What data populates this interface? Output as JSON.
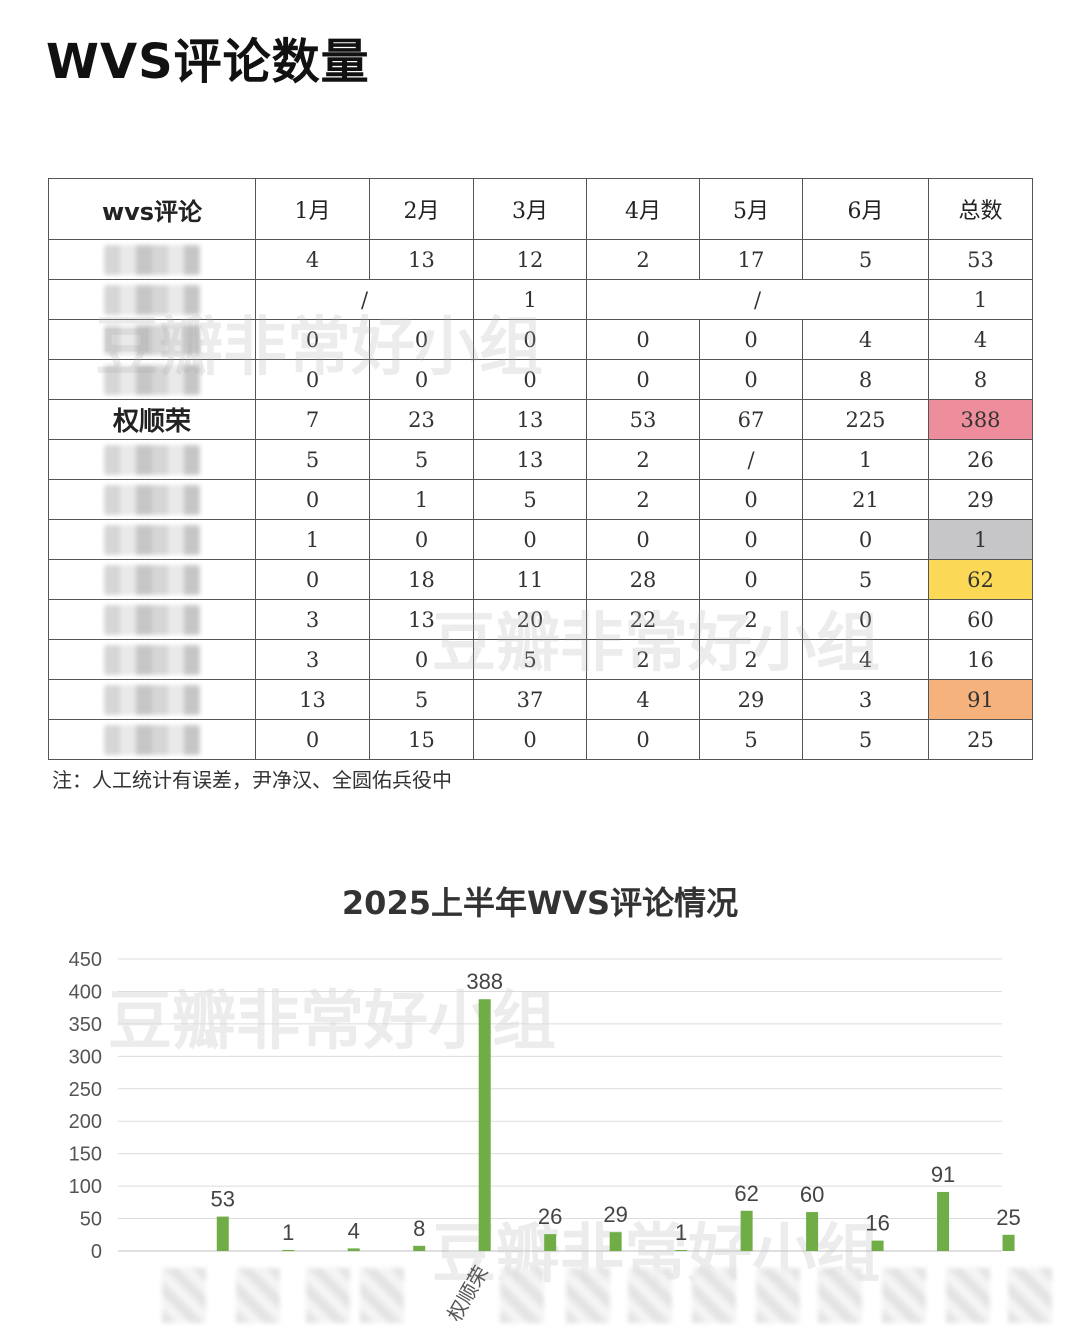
{
  "page": {
    "title": "WVS评论数量"
  },
  "table": {
    "headers": [
      "wvs评论",
      "1月",
      "2月",
      "3月",
      "4月",
      "5月",
      "6月",
      "总数"
    ],
    "rows": [
      {
        "name": "",
        "cells": [
          {
            "v": "4"
          },
          {
            "v": "13"
          },
          {
            "v": "12"
          },
          {
            "v": "2"
          },
          {
            "v": "17"
          },
          {
            "v": "5"
          }
        ],
        "total": "53",
        "highlight": ""
      },
      {
        "name": "",
        "cells": [
          {
            "v": "/",
            "span": 2
          },
          {
            "v": "1"
          },
          {
            "v": "/",
            "span": 3
          }
        ],
        "total": "1",
        "highlight": ""
      },
      {
        "name": "",
        "cells": [
          {
            "v": "0"
          },
          {
            "v": "0"
          },
          {
            "v": "0"
          },
          {
            "v": "0"
          },
          {
            "v": "0"
          },
          {
            "v": "4"
          }
        ],
        "total": "4",
        "highlight": ""
      },
      {
        "name": "",
        "cells": [
          {
            "v": "0"
          },
          {
            "v": "0"
          },
          {
            "v": "0"
          },
          {
            "v": "0"
          },
          {
            "v": "0"
          },
          {
            "v": "8"
          }
        ],
        "total": "8",
        "highlight": ""
      },
      {
        "name": "权顺荣",
        "cells": [
          {
            "v": "7"
          },
          {
            "v": "23"
          },
          {
            "v": "13"
          },
          {
            "v": "53"
          },
          {
            "v": "67"
          },
          {
            "v": "225"
          }
        ],
        "total": "388",
        "highlight": "#ee8d9c"
      },
      {
        "name": "",
        "cells": [
          {
            "v": "5"
          },
          {
            "v": "5"
          },
          {
            "v": "13"
          },
          {
            "v": "2"
          },
          {
            "v": "/"
          },
          {
            "v": "1"
          }
        ],
        "total": "26",
        "highlight": ""
      },
      {
        "name": "",
        "cells": [
          {
            "v": "0"
          },
          {
            "v": "1"
          },
          {
            "v": "5"
          },
          {
            "v": "2"
          },
          {
            "v": "0"
          },
          {
            "v": "21"
          }
        ],
        "total": "29",
        "highlight": ""
      },
      {
        "name": "",
        "cells": [
          {
            "v": "1"
          },
          {
            "v": "0"
          },
          {
            "v": "0"
          },
          {
            "v": "0"
          },
          {
            "v": "0"
          },
          {
            "v": "0"
          }
        ],
        "total": "1",
        "highlight": "#c6c6c8"
      },
      {
        "name": "",
        "cells": [
          {
            "v": "0"
          },
          {
            "v": "18"
          },
          {
            "v": "11"
          },
          {
            "v": "28"
          },
          {
            "v": "0"
          },
          {
            "v": "5"
          }
        ],
        "total": "62",
        "highlight": "#fbd855"
      },
      {
        "name": "",
        "cells": [
          {
            "v": "3"
          },
          {
            "v": "13"
          },
          {
            "v": "20"
          },
          {
            "v": "22"
          },
          {
            "v": "2"
          },
          {
            "v": "0"
          }
        ],
        "total": "60",
        "highlight": ""
      },
      {
        "name": "",
        "cells": [
          {
            "v": "3"
          },
          {
            "v": "0"
          },
          {
            "v": "5"
          },
          {
            "v": "2"
          },
          {
            "v": "2"
          },
          {
            "v": "4"
          }
        ],
        "total": "16",
        "highlight": ""
      },
      {
        "name": "",
        "cells": [
          {
            "v": "13"
          },
          {
            "v": "5"
          },
          {
            "v": "37"
          },
          {
            "v": "4"
          },
          {
            "v": "29"
          },
          {
            "v": "3"
          }
        ],
        "total": "91",
        "highlight": "#f5b27c"
      },
      {
        "name": "",
        "cells": [
          {
            "v": "0"
          },
          {
            "v": "15"
          },
          {
            "v": "0"
          },
          {
            "v": "0"
          },
          {
            "v": "5"
          },
          {
            "v": "5"
          }
        ],
        "total": "25",
        "highlight": ""
      }
    ],
    "note": "注：人工统计有误差，尹净汉、全圆佑兵役中"
  },
  "watermark": "豆瓣非常好小组",
  "chart_data": {
    "type": "bar",
    "title": "2025上半年WVS评论情况",
    "categories": [
      "",
      "",
      "",
      "",
      "权顺荣",
      "",
      "",
      "",
      "",
      "",
      "",
      "",
      ""
    ],
    "values": [
      53,
      1,
      4,
      8,
      388,
      26,
      29,
      1,
      62,
      60,
      16,
      91,
      25
    ],
    "yticks": [
      0,
      50,
      100,
      150,
      200,
      250,
      300,
      350,
      400,
      450
    ],
    "ylim": [
      0,
      450
    ],
    "grid": true,
    "bar_color": "#70ad47",
    "data_labels": true,
    "xlabel": "",
    "ylabel": ""
  }
}
